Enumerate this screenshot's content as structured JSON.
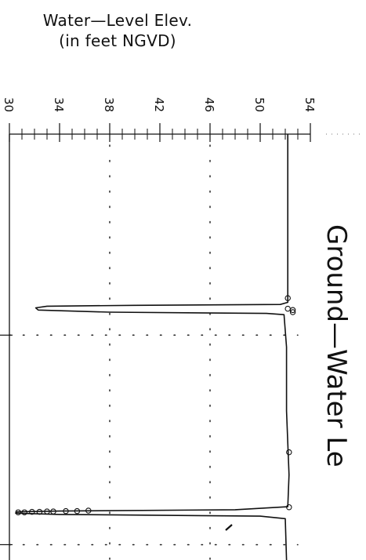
{
  "header": {
    "title_line1": "Water—Level Elev.",
    "title_line2": "(in feet NGVD)"
  },
  "chart_data": {
    "type": "line",
    "title": "Ground—Water Le",
    "ylabel": "Water—Level Elev. (in feet NGVD)",
    "elev_axis": {
      "range": [
        30,
        54
      ],
      "ticks": [
        30,
        34,
        38,
        42,
        46,
        50,
        54
      ],
      "tick_labels": [
        "30",
        "34",
        "38",
        "42",
        "46",
        "50",
        "54"
      ]
    },
    "grid": true,
    "series": [
      {
        "points": [
          {
            "t": 0.0,
            "elev": 52.2
          },
          {
            "t": 0.3,
            "elev": 52.2
          },
          {
            "t": 0.395,
            "elev": 52.2
          },
          {
            "t": 0.4,
            "elev": 51.6
          },
          {
            "t": 0.402,
            "elev": 40.0
          },
          {
            "t": 0.404,
            "elev": 33.0
          },
          {
            "t": 0.408,
            "elev": 32.1
          },
          {
            "t": 0.413,
            "elev": 32.3
          },
          {
            "t": 0.418,
            "elev": 38.0
          },
          {
            "t": 0.421,
            "elev": 50.5
          },
          {
            "t": 0.424,
            "elev": 51.9
          },
          {
            "t": 0.5,
            "elev": 52.1
          },
          {
            "t": 0.65,
            "elev": 52.1
          },
          {
            "t": 0.8,
            "elev": 52.3
          },
          {
            "t": 0.875,
            "elev": 52.2
          },
          {
            "t": 0.882,
            "elev": 48.0
          },
          {
            "t": 0.885,
            "elev": 34.0
          },
          {
            "t": 0.887,
            "elev": 30.6
          },
          {
            "t": 0.89,
            "elev": 30.5
          },
          {
            "t": 0.893,
            "elev": 34.0
          },
          {
            "t": 0.897,
            "elev": 50.0
          },
          {
            "t": 0.903,
            "elev": 52.0
          },
          {
            "t": 1.0,
            "elev": 52.1
          }
        ]
      }
    ],
    "observations": [
      {
        "t": 0.385,
        "elev": 52.2
      },
      {
        "t": 0.41,
        "elev": 52.2
      },
      {
        "t": 0.418,
        "elev": 52.6
      },
      {
        "t": 0.413,
        "elev": 52.6
      },
      {
        "t": 0.747,
        "elev": 52.3
      },
      {
        "t": 0.876,
        "elev": 52.3
      },
      {
        "t": 0.888,
        "elev": 30.7
      },
      {
        "t": 0.888,
        "elev": 31.2
      },
      {
        "t": 0.887,
        "elev": 31.8
      },
      {
        "t": 0.887,
        "elev": 32.4
      },
      {
        "t": 0.886,
        "elev": 33.0
      },
      {
        "t": 0.886,
        "elev": 33.5
      },
      {
        "t": 0.885,
        "elev": 34.5
      },
      {
        "t": 0.885,
        "elev": 35.4
      },
      {
        "t": 0.884,
        "elev": 36.3
      }
    ],
    "colors": {
      "line": "#111111",
      "grid": "#222222"
    }
  }
}
